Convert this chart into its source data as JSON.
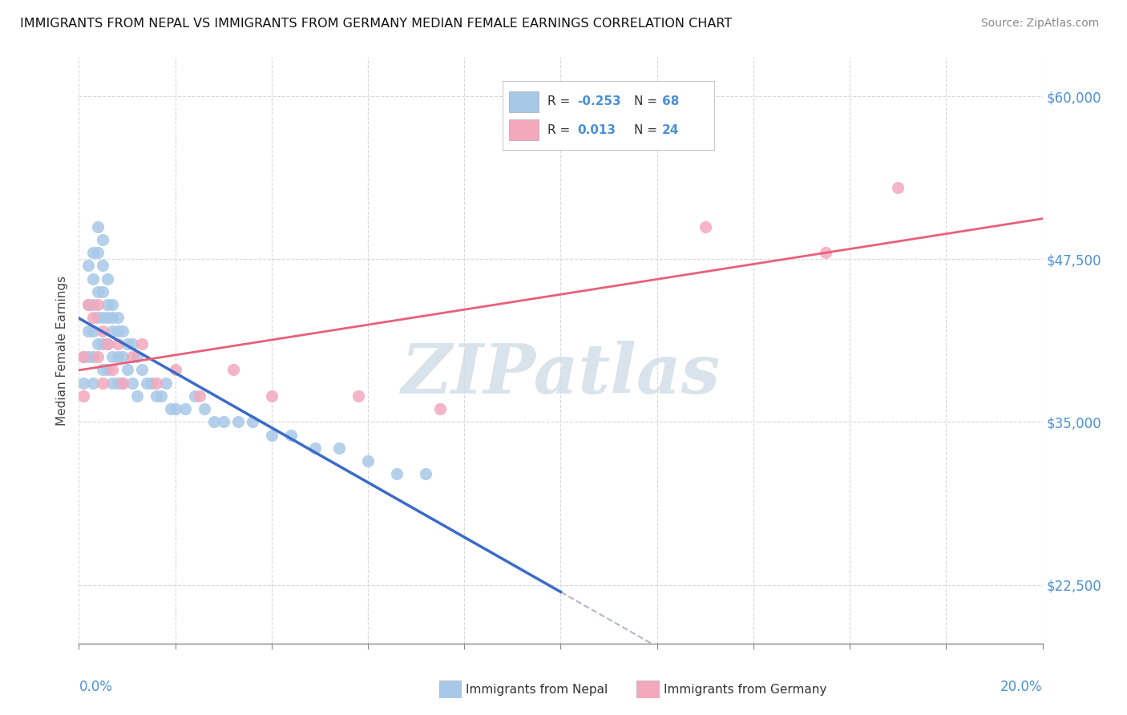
{
  "title": "IMMIGRANTS FROM NEPAL VS IMMIGRANTS FROM GERMANY MEDIAN FEMALE EARNINGS CORRELATION CHART",
  "source": "Source: ZipAtlas.com",
  "ylabel": "Median Female Earnings",
  "ytick_labels": [
    "$22,500",
    "$35,000",
    "$47,500",
    "$60,000"
  ],
  "ytick_values": [
    22500,
    35000,
    47500,
    60000
  ],
  "xmin": 0.0,
  "xmax": 0.2,
  "ymin": 18000,
  "ymax": 63000,
  "color_nepal": "#a8c8e8",
  "color_germany": "#f4a8bc",
  "color_line_nepal": "#3a6cc8",
  "color_line_germany": "#e8607a",
  "color_dashed": "#b0b8c8",
  "watermark_text": "ZIPatlas",
  "watermark_color": "#d0dce8",
  "nepal_x": [
    0.001,
    0.001,
    0.002,
    0.002,
    0.002,
    0.002,
    0.003,
    0.003,
    0.003,
    0.003,
    0.003,
    0.003,
    0.004,
    0.004,
    0.004,
    0.004,
    0.004,
    0.005,
    0.005,
    0.005,
    0.005,
    0.005,
    0.005,
    0.006,
    0.006,
    0.006,
    0.006,
    0.006,
    0.007,
    0.007,
    0.007,
    0.007,
    0.007,
    0.008,
    0.008,
    0.008,
    0.008,
    0.009,
    0.009,
    0.009,
    0.01,
    0.01,
    0.011,
    0.011,
    0.012,
    0.012,
    0.013,
    0.014,
    0.015,
    0.016,
    0.017,
    0.018,
    0.019,
    0.02,
    0.022,
    0.024,
    0.026,
    0.028,
    0.03,
    0.033,
    0.036,
    0.04,
    0.044,
    0.049,
    0.054,
    0.06,
    0.066,
    0.072
  ],
  "nepal_y": [
    40000,
    38000,
    47000,
    44000,
    42000,
    40000,
    48000,
    46000,
    44000,
    42000,
    40000,
    38000,
    50000,
    48000,
    45000,
    43000,
    41000,
    49000,
    47000,
    45000,
    43000,
    41000,
    39000,
    46000,
    44000,
    43000,
    41000,
    39000,
    44000,
    43000,
    42000,
    40000,
    38000,
    43000,
    42000,
    40000,
    38000,
    42000,
    40000,
    38000,
    41000,
    39000,
    41000,
    38000,
    40000,
    37000,
    39000,
    38000,
    38000,
    37000,
    37000,
    38000,
    36000,
    36000,
    36000,
    37000,
    36000,
    35000,
    35000,
    35000,
    35000,
    34000,
    34000,
    33000,
    33000,
    32000,
    31000,
    31000
  ],
  "germany_x": [
    0.001,
    0.001,
    0.002,
    0.003,
    0.004,
    0.004,
    0.005,
    0.005,
    0.006,
    0.007,
    0.008,
    0.009,
    0.011,
    0.013,
    0.016,
    0.02,
    0.025,
    0.032,
    0.04,
    0.058,
    0.075,
    0.13,
    0.155,
    0.17
  ],
  "germany_y": [
    40000,
    37000,
    44000,
    43000,
    44000,
    40000,
    42000,
    38000,
    41000,
    39000,
    41000,
    38000,
    40000,
    41000,
    38000,
    39000,
    37000,
    39000,
    37000,
    37000,
    36000,
    50000,
    48000,
    53000
  ],
  "nepal_line_x0": 0.0,
  "nepal_line_x1": 0.1,
  "germany_line_x0": 0.0,
  "germany_line_x1": 0.2,
  "dashed_line_x0": 0.1,
  "dashed_line_x1": 0.2
}
